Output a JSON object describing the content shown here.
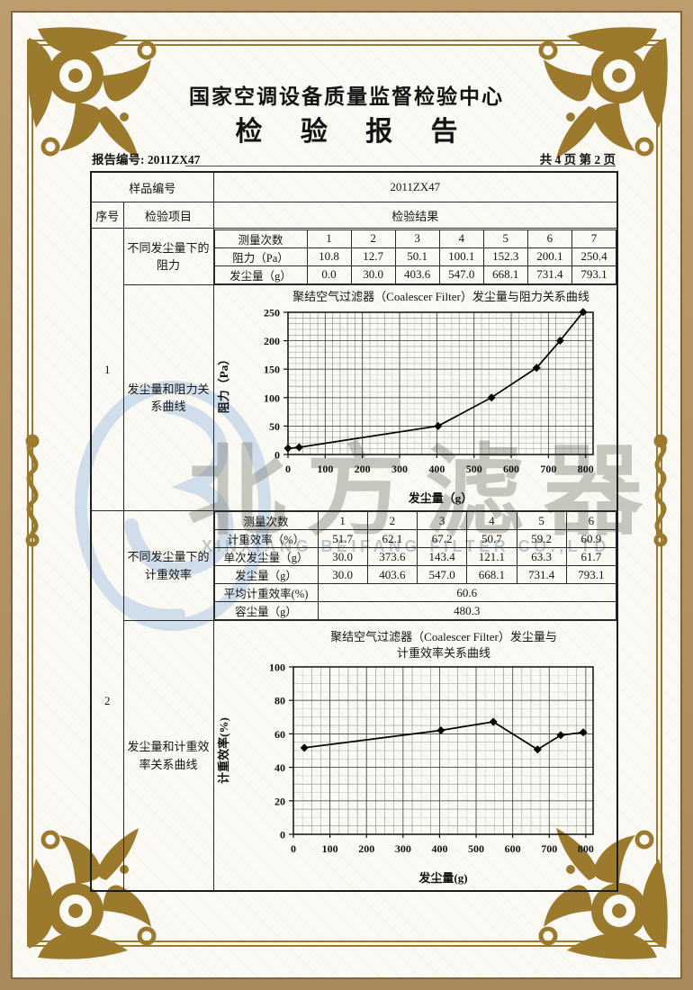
{
  "page": {
    "org_title": "国家空调设备质量监督检验中心",
    "report_title": "检 验 报 告",
    "report_no": "报告编号: 2011ZX47",
    "page_info": "共 4 页 第 2 页"
  },
  "table": {
    "sample_label": "样品编号",
    "sample_value": "2011ZX47",
    "col_seq": "序号",
    "col_item": "检验项目",
    "col_result": "检验结果",
    "sections": [
      {
        "seq": "1",
        "item_a": "不同发尘量下的阻力",
        "item_b": "发尘量和阻力关系曲线"
      },
      {
        "seq": "2",
        "item_a": "不同发尘量下的计重效率",
        "item_b": "发尘量和计重效率关系曲线"
      }
    ]
  },
  "resistance_table": {
    "headers": [
      "测量次数",
      "1",
      "2",
      "3",
      "4",
      "5",
      "6",
      "7"
    ],
    "rows": [
      [
        "阻力（Pa）",
        "10.8",
        "12.7",
        "50.1",
        "100.1",
        "152.3",
        "200.1",
        "250.4"
      ],
      [
        "发尘量（g）",
        "0.0",
        "30.0",
        "403.6",
        "547.0",
        "668.1",
        "731.4",
        "793.1"
      ]
    ]
  },
  "efficiency_table": {
    "headers": [
      "测量次数",
      "1",
      "2",
      "3",
      "4",
      "5",
      "6"
    ],
    "rows": [
      [
        "计重效率（%）",
        "51.7",
        "62.1",
        "67.2",
        "50.7",
        "59.2",
        "60.9"
      ],
      [
        "单次发尘量（g）",
        "30.0",
        "373.6",
        "143.4",
        "121.1",
        "63.3",
        "61.7"
      ],
      [
        "发尘量（g）",
        "30.0",
        "403.6",
        "547.0",
        "668.1",
        "731.4",
        "793.1"
      ]
    ],
    "summary_rows": [
      {
        "label": "平均计重效率(%)",
        "value": "60.6"
      },
      {
        "label": "容尘量（g）",
        "value": "480.3"
      }
    ]
  },
  "chart_data": [
    {
      "type": "line",
      "title": "聚结空气过滤器（Coalescer Filter）发尘量与阻力关系曲线",
      "xlabel": "发尘量（g）",
      "ylabel": "阻力（Pa）",
      "x": [
        0,
        30.0,
        403.6,
        547.0,
        668.1,
        731.4,
        793.1
      ],
      "y": [
        10.8,
        12.7,
        50.1,
        100.1,
        152.3,
        200.1,
        250.4
      ],
      "xlim": [
        0,
        820
      ],
      "ylim": [
        0,
        250
      ],
      "xticks": [
        0,
        100,
        200,
        300,
        400,
        500,
        600,
        700,
        800
      ],
      "yticks": [
        0,
        50,
        100,
        150,
        200,
        250
      ],
      "grid": true,
      "legend_position": "none",
      "marker": "diamond"
    },
    {
      "type": "line",
      "title": "聚结空气过滤器（Coalescer Filter）发尘量与",
      "title2": "计重效率关系曲线",
      "xlabel": "发尘量(g)",
      "ylabel": "计重效率(%)",
      "x": [
        30.0,
        403.6,
        547.0,
        668.1,
        731.4,
        793.1
      ],
      "y": [
        51.7,
        62.1,
        67.2,
        50.7,
        59.2,
        60.9
      ],
      "xlim": [
        0,
        820
      ],
      "ylim": [
        0,
        100
      ],
      "xticks": [
        0,
        100,
        200,
        300,
        400,
        500,
        600,
        700,
        800
      ],
      "yticks": [
        0,
        20,
        40,
        60,
        80,
        100
      ],
      "grid": true,
      "legend_position": "none",
      "marker": "diamond"
    }
  ],
  "watermark": {
    "logo": "beifang-logo",
    "text_cn": "北方滤器",
    "text_en": "XINXIANG BEIFANG FILTER CO.,LTD"
  }
}
